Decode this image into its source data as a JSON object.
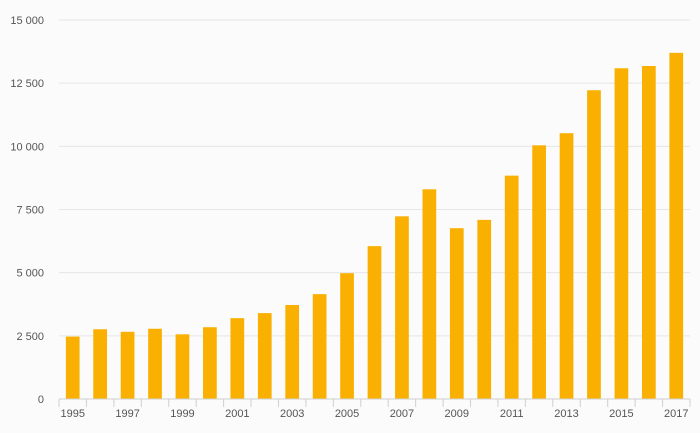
{
  "chart_data": {
    "type": "bar",
    "categories": [
      "1995",
      "1996",
      "1997",
      "1998",
      "1999",
      "2000",
      "2001",
      "2002",
      "2003",
      "2004",
      "2005",
      "2006",
      "2007",
      "2008",
      "2009",
      "2010",
      "2011",
      "2012",
      "2013",
      "2014",
      "2015",
      "2016",
      "2017"
    ],
    "x_tick_labels": [
      "1995",
      "1997",
      "1999",
      "2001",
      "2003",
      "2005",
      "2007",
      "2009",
      "2011",
      "2013",
      "2015",
      "2017"
    ],
    "values": [
      2470,
      2760,
      2660,
      2780,
      2560,
      2840,
      3200,
      3400,
      3720,
      4150,
      4980,
      6050,
      7230,
      8300,
      6760,
      7090,
      8840,
      10040,
      10520,
      12220,
      13090,
      13180,
      13700
    ],
    "ylim": [
      0,
      15000
    ],
    "y_ticks": [
      0,
      2500,
      5000,
      7500,
      10000,
      12500,
      15000
    ],
    "y_tick_labels": [
      "0",
      "2 500",
      "5 000",
      "7 500",
      "10 000",
      "12 500",
      "15 000"
    ],
    "title": "",
    "xlabel": "",
    "ylabel": "",
    "grid": true,
    "bar_color": "#f9b000"
  }
}
